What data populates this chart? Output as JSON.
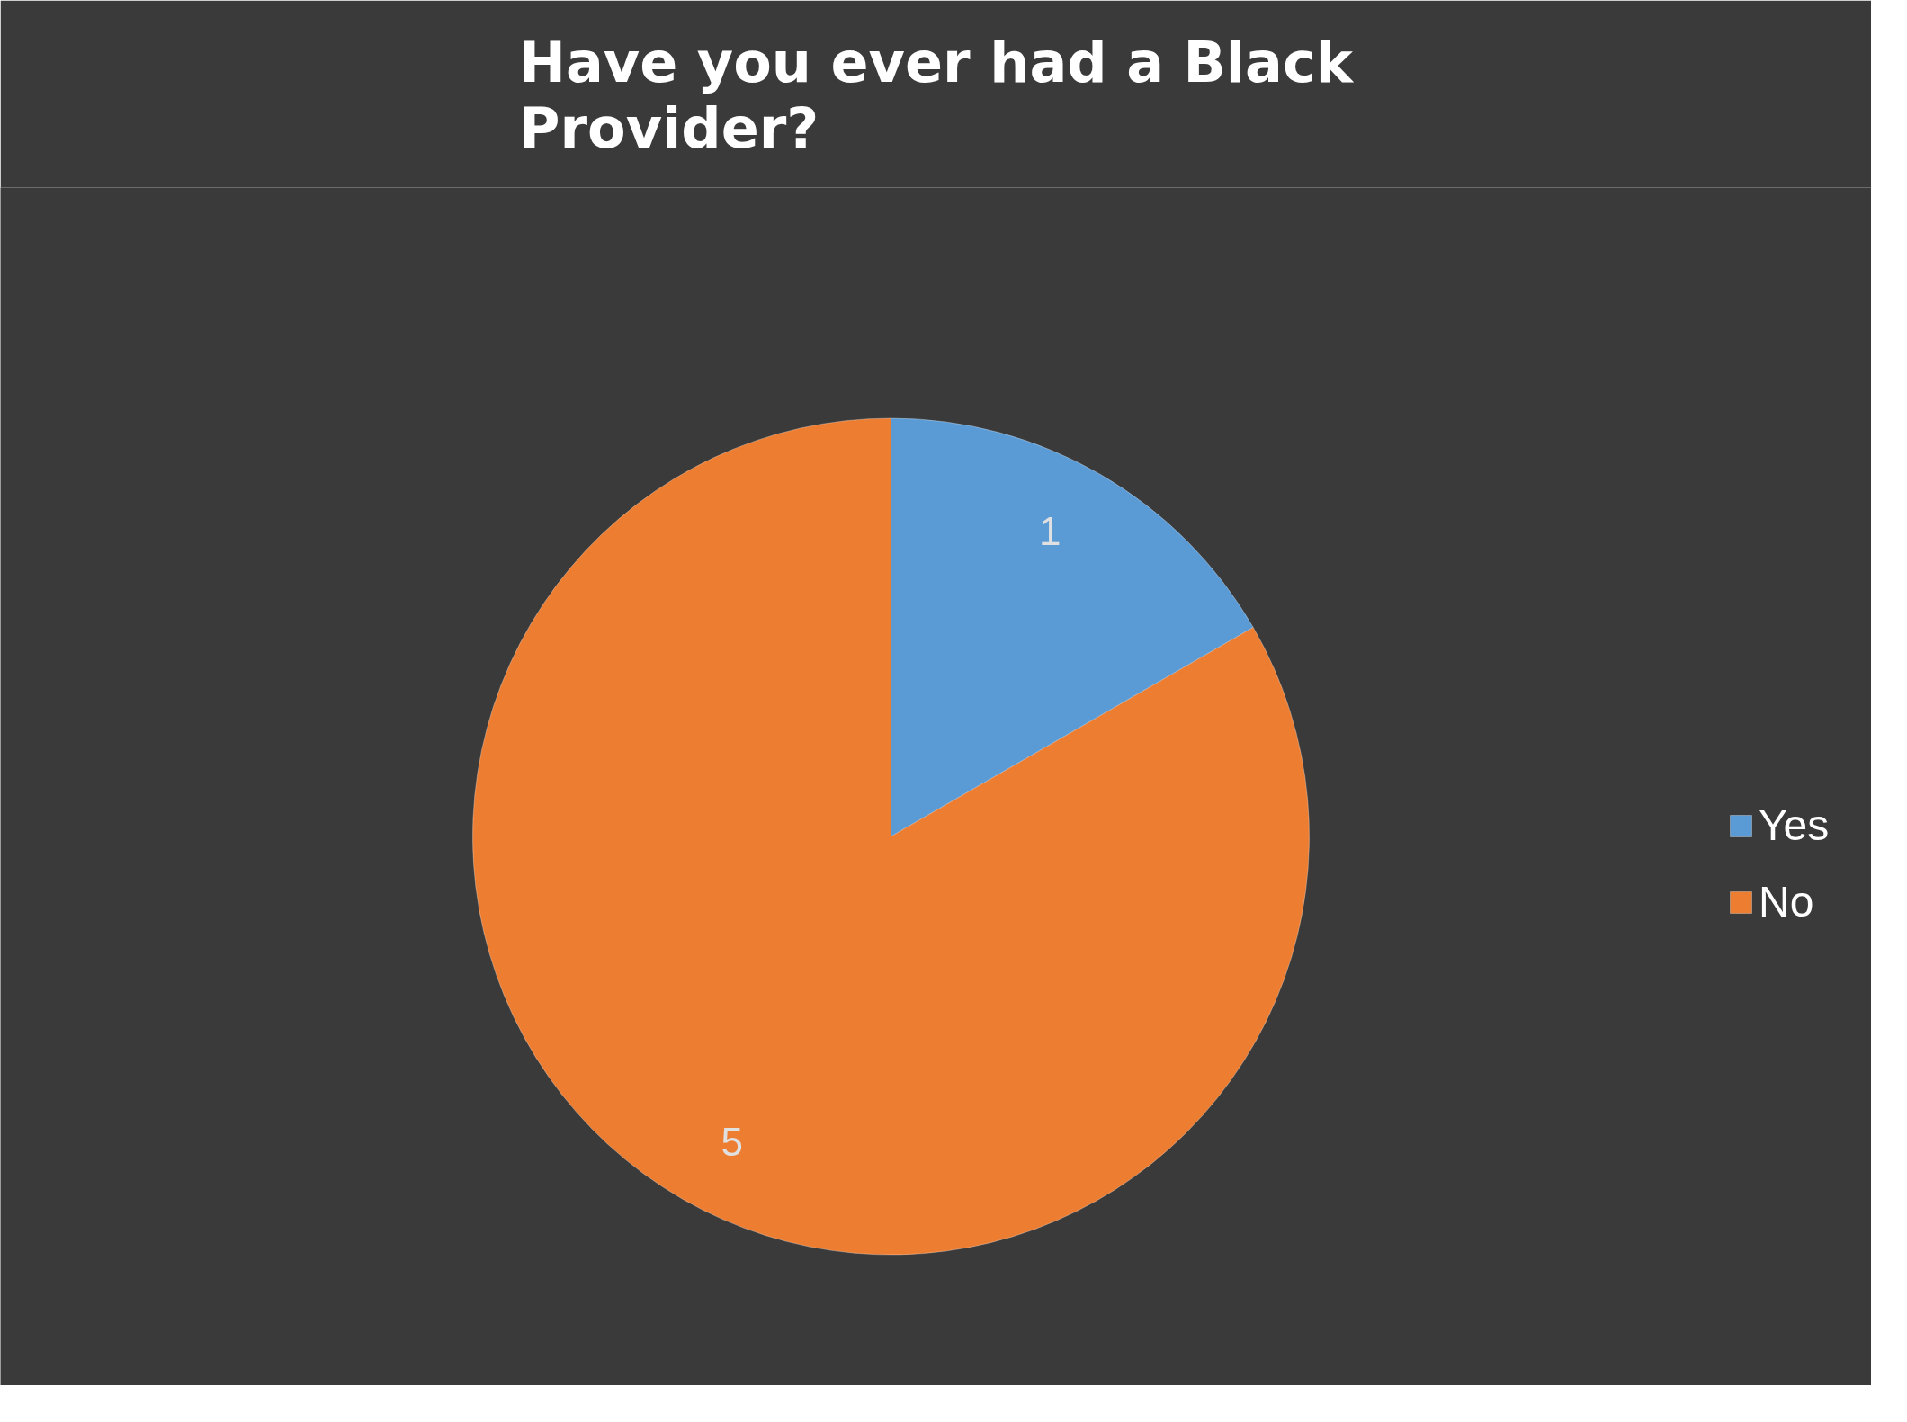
{
  "chart_data": {
    "type": "pie",
    "title": "Have you ever had a Black Provider?",
    "categories": [
      "Yes",
      "No"
    ],
    "values": [
      1,
      5
    ],
    "colors": [
      "#5b9bd5",
      "#ed7d31"
    ],
    "data_labels": true,
    "legend": "right"
  }
}
